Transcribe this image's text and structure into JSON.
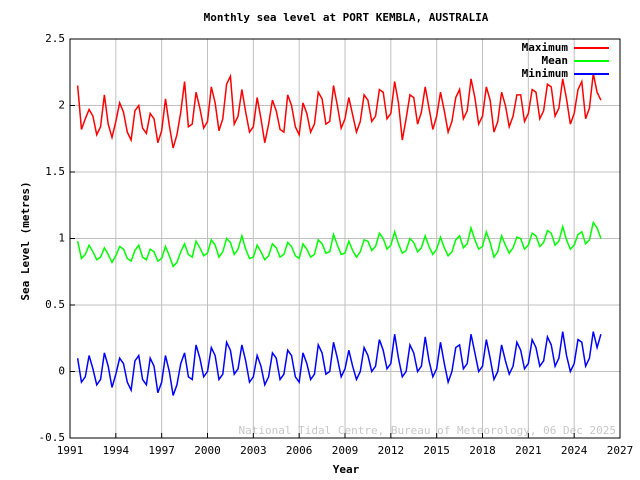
{
  "chart_data": {
    "type": "line",
    "title": "Monthly sea level at PORT KEMBLA, AUSTRALIA",
    "x_label": "Year",
    "y_label": "Sea Level (metres)",
    "annotation": "National Tidal Centre, Bureau of Meteorology, 06 Dec 2025",
    "xlim": [
      1991,
      2027
    ],
    "xticks": [
      1991,
      1994,
      1997,
      2000,
      2003,
      2006,
      2009,
      2012,
      2015,
      2018,
      2021,
      2024,
      2027
    ],
    "ylim": [
      -0.5,
      2.5
    ],
    "yticks": [
      -0.5,
      0,
      0.5,
      1,
      1.5,
      2,
      2.5
    ],
    "grid": true,
    "legend": "top-right",
    "x": [
      1991.5,
      1991.75,
      1992,
      1992.25,
      1992.5,
      1992.75,
      1993,
      1993.25,
      1993.5,
      1993.75,
      1994,
      1994.25,
      1994.5,
      1994.75,
      1995,
      1995.25,
      1995.5,
      1995.75,
      1996,
      1996.25,
      1996.5,
      1996.75,
      1997,
      1997.25,
      1997.5,
      1997.75,
      1998,
      1998.25,
      1998.5,
      1998.75,
      1999,
      1999.25,
      1999.5,
      1999.75,
      2000,
      2000.25,
      2000.5,
      2000.75,
      2001,
      2001.25,
      2001.5,
      2001.75,
      2002,
      2002.25,
      2002.5,
      2002.75,
      2003,
      2003.25,
      2003.5,
      2003.75,
      2004,
      2004.25,
      2004.5,
      2004.75,
      2005,
      2005.25,
      2005.5,
      2005.75,
      2006,
      2006.25,
      2006.5,
      2006.75,
      2007,
      2007.25,
      2007.5,
      2007.75,
      2008,
      2008.25,
      2008.5,
      2008.75,
      2009,
      2009.25,
      2009.5,
      2009.75,
      2010,
      2010.25,
      2010.5,
      2010.75,
      2011,
      2011.25,
      2011.5,
      2011.75,
      2012,
      2012.25,
      2012.5,
      2012.75,
      2013,
      2013.25,
      2013.5,
      2013.75,
      2014,
      2014.25,
      2014.5,
      2014.75,
      2015,
      2015.25,
      2015.5,
      2015.75,
      2016,
      2016.25,
      2016.5,
      2016.75,
      2017,
      2017.25,
      2017.5,
      2017.75,
      2018,
      2018.25,
      2018.5,
      2018.75,
      2019,
      2019.25,
      2019.5,
      2019.75,
      2020,
      2020.25,
      2020.5,
      2020.75,
      2021,
      2021.25,
      2021.5,
      2021.75,
      2022,
      2022.25,
      2022.5,
      2022.75,
      2023,
      2023.25,
      2023.5,
      2023.75,
      2024,
      2024.25,
      2024.5,
      2024.75,
      2025,
      2025.25,
      2025.5,
      2025.75
    ],
    "series": [
      {
        "name": "Maximum",
        "color": "#ff0000",
        "values": [
          2.15,
          1.82,
          1.9,
          1.97,
          1.92,
          1.78,
          1.84,
          2.08,
          1.86,
          1.76,
          1.88,
          2.02,
          1.95,
          1.8,
          1.74,
          1.96,
          2.0,
          1.83,
          1.79,
          1.94,
          1.9,
          1.72,
          1.81,
          2.05,
          1.85,
          1.68,
          1.78,
          1.95,
          2.18,
          1.84,
          1.86,
          2.1,
          1.98,
          1.83,
          1.88,
          2.14,
          2.02,
          1.81,
          1.9,
          2.16,
          2.22,
          1.86,
          1.92,
          2.12,
          1.95,
          1.8,
          1.84,
          2.06,
          1.9,
          1.72,
          1.86,
          2.04,
          1.96,
          1.82,
          1.8,
          2.08,
          2.0,
          1.84,
          1.78,
          2.02,
          1.94,
          1.8,
          1.86,
          2.1,
          2.05,
          1.86,
          1.88,
          2.15,
          2.0,
          1.83,
          1.9,
          2.06,
          1.93,
          1.8,
          1.88,
          2.08,
          2.04,
          1.88,
          1.92,
          2.12,
          2.1,
          1.9,
          1.94,
          2.18,
          2.02,
          1.74,
          1.9,
          2.08,
          2.06,
          1.86,
          1.95,
          2.14,
          1.98,
          1.82,
          1.92,
          2.1,
          1.96,
          1.8,
          1.88,
          2.06,
          2.12,
          1.9,
          1.96,
          2.2,
          2.06,
          1.86,
          1.92,
          2.14,
          2.04,
          1.8,
          1.88,
          2.1,
          2.0,
          1.84,
          1.92,
          2.08,
          2.08,
          1.88,
          1.94,
          2.12,
          2.1,
          1.9,
          1.96,
          2.16,
          2.14,
          1.92,
          1.98,
          2.2,
          2.05,
          1.86,
          1.94,
          2.12,
          2.18,
          1.9,
          1.98,
          2.24,
          2.1,
          2.04
        ]
      },
      {
        "name": "Mean",
        "color": "#00ff00",
        "values": [
          0.98,
          0.85,
          0.88,
          0.95,
          0.9,
          0.84,
          0.86,
          0.93,
          0.88,
          0.82,
          0.87,
          0.94,
          0.92,
          0.85,
          0.83,
          0.91,
          0.95,
          0.86,
          0.84,
          0.92,
          0.9,
          0.83,
          0.85,
          0.94,
          0.87,
          0.79,
          0.82,
          0.9,
          0.96,
          0.88,
          0.86,
          0.98,
          0.93,
          0.87,
          0.89,
          0.99,
          0.95,
          0.86,
          0.9,
          1.0,
          0.97,
          0.88,
          0.92,
          1.02,
          0.92,
          0.85,
          0.86,
          0.95,
          0.9,
          0.84,
          0.87,
          0.96,
          0.93,
          0.86,
          0.88,
          0.97,
          0.94,
          0.87,
          0.85,
          0.96,
          0.92,
          0.86,
          0.88,
          0.99,
          0.96,
          0.89,
          0.9,
          1.03,
          0.95,
          0.88,
          0.89,
          0.98,
          0.91,
          0.86,
          0.9,
          0.99,
          0.98,
          0.91,
          0.94,
          1.04,
          1.0,
          0.92,
          0.95,
          1.05,
          0.96,
          0.89,
          0.91,
          1.0,
          0.97,
          0.9,
          0.93,
          1.02,
          0.94,
          0.88,
          0.92,
          1.01,
          0.93,
          0.87,
          0.9,
          0.99,
          1.02,
          0.93,
          0.96,
          1.08,
          0.99,
          0.92,
          0.94,
          1.05,
          0.97,
          0.86,
          0.9,
          1.02,
          0.95,
          0.89,
          0.93,
          1.01,
          1.0,
          0.92,
          0.95,
          1.04,
          1.02,
          0.94,
          0.97,
          1.06,
          1.04,
          0.95,
          0.98,
          1.09,
          0.99,
          0.92,
          0.95,
          1.03,
          1.05,
          0.96,
          0.99,
          1.12,
          1.08,
          1.0
        ]
      },
      {
        "name": "Minimum",
        "color": "#0000ff",
        "values": [
          0.1,
          -0.08,
          -0.04,
          0.12,
          0.02,
          -0.1,
          -0.06,
          0.14,
          0.04,
          -0.12,
          -0.02,
          0.1,
          0.06,
          -0.08,
          -0.14,
          0.08,
          0.12,
          -0.06,
          -0.1,
          0.1,
          0.04,
          -0.16,
          -0.08,
          0.12,
          0.0,
          -0.18,
          -0.1,
          0.06,
          0.14,
          -0.04,
          -0.06,
          0.2,
          0.1,
          -0.04,
          0.0,
          0.18,
          0.12,
          -0.06,
          -0.02,
          0.22,
          0.16,
          -0.02,
          0.02,
          0.2,
          0.08,
          -0.08,
          -0.04,
          0.12,
          0.04,
          -0.1,
          -0.04,
          0.14,
          0.1,
          -0.06,
          -0.02,
          0.16,
          0.12,
          -0.04,
          -0.08,
          0.14,
          0.06,
          -0.06,
          -0.02,
          0.2,
          0.14,
          -0.02,
          0.0,
          0.22,
          0.1,
          -0.04,
          0.02,
          0.16,
          0.04,
          -0.06,
          0.0,
          0.18,
          0.12,
          0.0,
          0.04,
          0.24,
          0.16,
          0.02,
          0.06,
          0.28,
          0.1,
          -0.04,
          0.0,
          0.2,
          0.14,
          0.0,
          0.04,
          0.26,
          0.08,
          -0.04,
          0.02,
          0.22,
          0.06,
          -0.08,
          0.0,
          0.18,
          0.2,
          0.02,
          0.06,
          0.28,
          0.14,
          0.0,
          0.04,
          0.24,
          0.1,
          -0.06,
          0.0,
          0.2,
          0.08,
          -0.02,
          0.04,
          0.22,
          0.16,
          0.02,
          0.06,
          0.24,
          0.18,
          0.04,
          0.08,
          0.26,
          0.2,
          0.04,
          0.1,
          0.3,
          0.12,
          0.0,
          0.06,
          0.24,
          0.22,
          0.04,
          0.1,
          0.3,
          0.18,
          0.28
        ]
      }
    ]
  }
}
